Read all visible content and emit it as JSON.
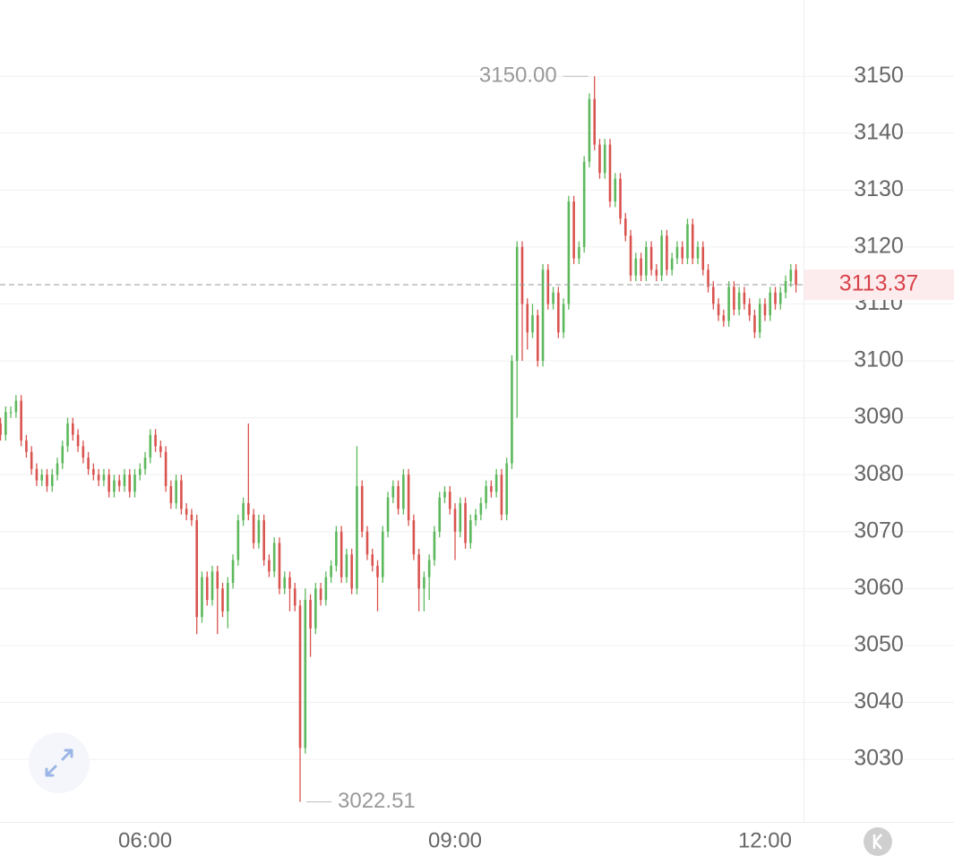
{
  "chart_data": {
    "type": "ohlc",
    "x": [
      276,
      279,
      282,
      285,
      288,
      291,
      294,
      297,
      300,
      303,
      306,
      309,
      312,
      315,
      318,
      321,
      324,
      327,
      330,
      333,
      336,
      339,
      342,
      345,
      348,
      351,
      354,
      357,
      360,
      363,
      366,
      369,
      372,
      375,
      378,
      381,
      384,
      387,
      390,
      393,
      396,
      399,
      402,
      405,
      408,
      411,
      414,
      417,
      420,
      423,
      426,
      429,
      432,
      435,
      438,
      441,
      444,
      447,
      450,
      453,
      456,
      459,
      462,
      465,
      468,
      471,
      474,
      477,
      480,
      483,
      486,
      489,
      492,
      495,
      498,
      501,
      504,
      507,
      510,
      513,
      516,
      519,
      522,
      525,
      528,
      531,
      534,
      537,
      540,
      543,
      546,
      549,
      552,
      555,
      558,
      561,
      564,
      567,
      570,
      573,
      576,
      579,
      582,
      585,
      588,
      591,
      594,
      597,
      600,
      603,
      606,
      609,
      612,
      615,
      618,
      621,
      624,
      627,
      630,
      633,
      636,
      639,
      642,
      645,
      648,
      651,
      654,
      657,
      660,
      663,
      666,
      669,
      672,
      675,
      678,
      681,
      684,
      687,
      690,
      693,
      696,
      699,
      702,
      705,
      708,
      711,
      714,
      717,
      720,
      723,
      726,
      729,
      732,
      735,
      738
    ],
    "open": [
      3089,
      3087,
      3091,
      3091,
      3093,
      3086,
      3084,
      3081,
      3079,
      3080,
      3078,
      3080,
      3082,
      3085,
      3089,
      3087,
      3085,
      3083,
      3081,
      3080,
      3079,
      3080,
      3077,
      3079,
      3078,
      3080,
      3077,
      3080,
      3081,
      3083,
      3087,
      3085,
      3084,
      3078,
      3075,
      3079,
      3074,
      3073,
      3072,
      3055,
      3062,
      3058,
      3063,
      3060,
      3056,
      3061,
      3065,
      3072,
      3075,
      3073,
      3068,
      3072,
      3065,
      3063,
      3068,
      3060,
      3062,
      3060,
      3057,
      3032,
      3058,
      3053,
      3060,
      3058,
      3062,
      3064,
      3070,
      3062,
      3066,
      3060,
      3078,
      3070,
      3066,
      3064,
      3062,
      3070,
      3076,
      3078,
      3074,
      3080,
      3072,
      3066,
      3060,
      3062,
      3065,
      3070,
      3076,
      3077,
      3074,
      3070,
      3075,
      3068,
      3072,
      3073,
      3075,
      3078,
      3077,
      3080,
      3073,
      3082,
      3100,
      3120,
      3110,
      3105,
      3108,
      3100,
      3116,
      3110,
      3112,
      3105,
      3110,
      3128,
      3118,
      3120,
      3135,
      3146,
      3138,
      3133,
      3138,
      3128,
      3132,
      3125,
      3122,
      3115,
      3118,
      3115,
      3120,
      3116,
      3115,
      3122,
      3116,
      3118,
      3120,
      3118,
      3124,
      3118,
      3120,
      3116,
      3113,
      3110,
      3108,
      3107,
      3113,
      3109,
      3112,
      3110,
      3108,
      3105,
      3110,
      3108,
      3112,
      3110,
      3112,
      3114,
      3116
    ],
    "high": [
      3090,
      3092,
      3092,
      3094,
      3094,
      3087,
      3085,
      3082,
      3081,
      3081,
      3081,
      3083,
      3086,
      3090,
      3090,
      3088,
      3086,
      3084,
      3082,
      3081,
      3081,
      3081,
      3080,
      3080,
      3081,
      3081,
      3081,
      3082,
      3084,
      3088,
      3088,
      3086,
      3085,
      3079,
      3080,
      3080,
      3075,
      3074,
      3073,
      3063,
      3063,
      3064,
      3064,
      3061,
      3062,
      3066,
      3073,
      3076,
      3089,
      3074,
      3073,
      3073,
      3066,
      3069,
      3069,
      3063,
      3063,
      3061,
      3058,
      3060,
      3059,
      3061,
      3061,
      3063,
      3065,
      3071,
      3071,
      3067,
      3067,
      3085,
      3079,
      3071,
      3067,
      3065,
      3071,
      3077,
      3079,
      3079,
      3081,
      3081,
      3073,
      3067,
      3063,
      3066,
      3071,
      3077,
      3078,
      3078,
      3075,
      3076,
      3076,
      3073,
      3074,
      3076,
      3079,
      3079,
      3081,
      3081,
      3083,
      3101,
      3121,
      3121,
      3111,
      3110,
      3109,
      3117,
      3117,
      3113,
      3113,
      3111,
      3129,
      3129,
      3121,
      3136,
      3147,
      3150,
      3139,
      3139,
      3139,
      3133,
      3133,
      3126,
      3123,
      3119,
      3119,
      3121,
      3121,
      3117,
      3123,
      3123,
      3119,
      3121,
      3121,
      3125,
      3125,
      3121,
      3121,
      3117,
      3114,
      3111,
      3109,
      3114,
      3114,
      3113,
      3113,
      3111,
      3109,
      3111,
      3111,
      3113,
      3113,
      3113,
      3115,
      3117,
      3117
    ],
    "low": [
      3086,
      3086,
      3090,
      3090,
      3085,
      3083,
      3080,
      3078,
      3078,
      3077,
      3077,
      3079,
      3081,
      3084,
      3086,
      3084,
      3082,
      3080,
      3079,
      3078,
      3078,
      3076,
      3076,
      3077,
      3077,
      3076,
      3076,
      3079,
      3080,
      3082,
      3084,
      3083,
      3077,
      3074,
      3074,
      3073,
      3072,
      3071,
      3052,
      3054,
      3057,
      3057,
      3052,
      3055,
      3053,
      3060,
      3064,
      3071,
      3072,
      3067,
      3067,
      3064,
      3062,
      3062,
      3059,
      3059,
      3056,
      3056,
      3022.51,
      3031,
      3048,
      3052,
      3057,
      3057,
      3061,
      3063,
      3061,
      3061,
      3059,
      3059,
      3069,
      3065,
      3063,
      3056,
      3061,
      3069,
      3075,
      3073,
      3073,
      3071,
      3065,
      3056,
      3056,
      3058,
      3064,
      3069,
      3075,
      3073,
      3065,
      3069,
      3067,
      3067,
      3071,
      3072,
      3074,
      3076,
      3076,
      3072,
      3072,
      3081,
      3090,
      3100,
      3102,
      3104,
      3099,
      3099,
      3109,
      3109,
      3104,
      3104,
      3109,
      3117,
      3117,
      3119,
      3134,
      3137,
      3132,
      3132,
      3127,
      3127,
      3124,
      3121,
      3114,
      3114,
      3114,
      3114,
      3115,
      3114,
      3114,
      3115,
      3115,
      3117,
      3117,
      3117,
      3117,
      3117,
      3115,
      3112,
      3109,
      3107,
      3106,
      3106,
      3108,
      3108,
      3109,
      3107,
      3104,
      3104,
      3107,
      3107,
      3109,
      3109,
      3111,
      3113,
      3112
    ],
    "close": [
      3087,
      3091,
      3091,
      3093,
      3086,
      3084,
      3081,
      3079,
      3080,
      3078,
      3080,
      3082,
      3085,
      3089,
      3087,
      3085,
      3083,
      3081,
      3080,
      3079,
      3080,
      3077,
      3079,
      3078,
      3080,
      3077,
      3080,
      3081,
      3083,
      3087,
      3085,
      3084,
      3078,
      3075,
      3079,
      3074,
      3073,
      3072,
      3055,
      3062,
      3058,
      3063,
      3060,
      3056,
      3061,
      3065,
      3072,
      3075,
      3073,
      3068,
      3072,
      3065,
      3063,
      3068,
      3060,
      3062,
      3060,
      3057,
      3032,
      3058,
      3053,
      3060,
      3058,
      3062,
      3064,
      3070,
      3062,
      3066,
      3060,
      3078,
      3070,
      3066,
      3064,
      3062,
      3070,
      3076,
      3078,
      3074,
      3080,
      3072,
      3066,
      3060,
      3062,
      3065,
      3070,
      3076,
      3077,
      3074,
      3070,
      3075,
      3068,
      3072,
      3073,
      3075,
      3078,
      3077,
      3080,
      3073,
      3082,
      3100,
      3120,
      3110,
      3105,
      3108,
      3100,
      3116,
      3110,
      3112,
      3105,
      3110,
      3128,
      3118,
      3120,
      3135,
      3146,
      3138,
      3133,
      3138,
      3128,
      3132,
      3125,
      3122,
      3115,
      3118,
      3115,
      3120,
      3116,
      3115,
      3122,
      3116,
      3118,
      3120,
      3118,
      3124,
      3118,
      3120,
      3116,
      3113,
      3110,
      3108,
      3107,
      3113,
      3109,
      3112,
      3110,
      3108,
      3105,
      3110,
      3108,
      3112,
      3110,
      3112,
      3114,
      3116,
      3113.37
    ],
    "up_color": "#5cb85c",
    "down_color": "#d9534f",
    "xlim": [
      275.7,
      742.9
    ],
    "xticks": [
      {
        "value": 360,
        "label": "06:00"
      },
      {
        "value": 540,
        "label": "09:00"
      },
      {
        "value": 720,
        "label": "12:00"
      }
    ],
    "ylim": [
      3019,
      3163.4
    ],
    "yticks": [
      3030,
      3040,
      3050,
      3060,
      3070,
      3080,
      3090,
      3100,
      3110,
      3120,
      3130,
      3140,
      3150
    ],
    "grid": true,
    "max": {
      "value": 3150,
      "label": "3150.00"
    },
    "min": 3022.51,
    "last": 3113.37
  }
}
